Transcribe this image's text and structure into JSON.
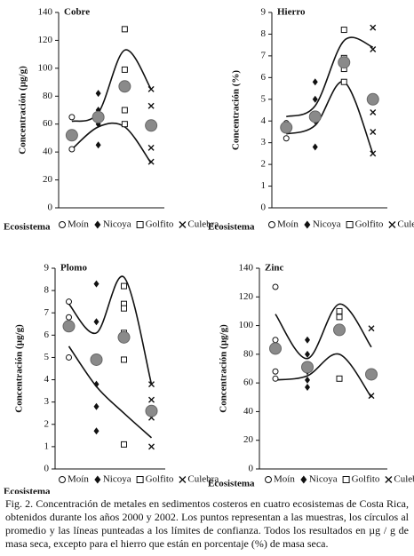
{
  "chart_data": [
    {
      "type": "strip",
      "title": "Cobre",
      "y_label": "Concentración (µg/g)",
      "x_label": "Ecosistema",
      "ylim": [
        0,
        140
      ],
      "yticks": [
        0,
        20,
        40,
        60,
        80,
        100,
        120,
        140
      ],
      "series": [
        {
          "name": "Moín",
          "marker": "circle",
          "values": [
            65,
            52,
            42,
            54
          ]
        },
        {
          "name": "Nicoya",
          "marker": "diamond",
          "values": [
            82,
            70,
            65,
            62,
            45,
            60
          ]
        },
        {
          "name": "Golfito",
          "marker": "square",
          "values": [
            128,
            99,
            88,
            70,
            60
          ]
        },
        {
          "name": "Culebra",
          "marker": "x",
          "values": [
            85,
            73,
            58,
            43,
            33
          ]
        }
      ],
      "means": [
        52,
        65,
        87,
        59
      ],
      "upper": [
        62,
        68,
        113,
        85
      ],
      "lower": [
        42,
        58,
        58,
        32
      ]
    },
    {
      "type": "strip",
      "title": "Hierro",
      "y_label": "Concentración (%)",
      "x_label": "Ecosistema",
      "ylim": [
        0,
        9
      ],
      "yticks": [
        0,
        1,
        2,
        3,
        4,
        5,
        6,
        7,
        8,
        9
      ],
      "series": [
        {
          "name": "Moín",
          "marker": "circle",
          "values": [
            3.8,
            3.6,
            3.2,
            3.9
          ]
        },
        {
          "name": "Nicoya",
          "marker": "diamond",
          "values": [
            5.8,
            5.0,
            4.3,
            4.0,
            2.8
          ]
        },
        {
          "name": "Golfito",
          "marker": "square",
          "values": [
            8.2,
            6.9,
            6.6,
            6.4,
            5.8
          ]
        },
        {
          "name": "Culebra",
          "marker": "x",
          "values": [
            8.3,
            7.3,
            4.4,
            3.5,
            2.5
          ]
        }
      ],
      "means": [
        3.7,
        4.2,
        6.7,
        5.0
      ],
      "upper": [
        4.2,
        4.7,
        7.7,
        7.4
      ],
      "lower": [
        3.4,
        3.8,
        5.8,
        2.5
      ]
    },
    {
      "type": "strip",
      "title": "Plomo",
      "y_label": "Concentración (µg/g)",
      "x_label": "Ecosistema",
      "ylim": [
        0,
        9
      ],
      "yticks": [
        0,
        1,
        2,
        3,
        4,
        5,
        6,
        7,
        8,
        9
      ],
      "series": [
        {
          "name": "Moín",
          "marker": "circle",
          "values": [
            7.5,
            6.8,
            6.3,
            5.0
          ]
        },
        {
          "name": "Nicoya",
          "marker": "diamond",
          "values": [
            8.3,
            6.6,
            5.0,
            4.9,
            3.8,
            2.8,
            1.7
          ]
        },
        {
          "name": "Golfito",
          "marker": "square",
          "values": [
            8.2,
            7.4,
            7.2,
            6.1,
            4.9,
            1.1
          ]
        },
        {
          "name": "Culebra",
          "marker": "x",
          "values": [
            3.8,
            3.1,
            2.5,
            2.3,
            1.0
          ]
        }
      ],
      "means": [
        6.4,
        4.9,
        5.9,
        2.6
      ],
      "upper": [
        7.4,
        6.1,
        8.6,
        3.8
      ],
      "lower": [
        5.5,
        3.7,
        2.5,
        1.4
      ]
    },
    {
      "type": "strip",
      "title": "Zinc",
      "y_label": "Concentración (µg/g)",
      "x_label": "Ecosistema",
      "ylim": [
        0,
        140
      ],
      "yticks": [
        0,
        20,
        40,
        60,
        80,
        100,
        120,
        140
      ],
      "series": [
        {
          "name": "Moín",
          "marker": "circle",
          "values": [
            127,
            90,
            82,
            68,
            63
          ]
        },
        {
          "name": "Nicoya",
          "marker": "diamond",
          "values": [
            90,
            80,
            72,
            68,
            62,
            57
          ]
        },
        {
          "name": "Golfito",
          "marker": "square",
          "values": [
            110,
            106,
            98,
            96,
            63
          ]
        },
        {
          "name": "Culebra",
          "marker": "x",
          "values": [
            98,
            66,
            65,
            51
          ]
        }
      ],
      "means": [
        84,
        71,
        97,
        66
      ],
      "upper": [
        108,
        77,
        115,
        85
      ],
      "lower": [
        62,
        65,
        80,
        50
      ]
    }
  ],
  "caption": "Fig. 2. Concentración de metales en sedimentos costeros en cuatro ecosistemas de Costa Rica, obtenidos durante los años 2000 y 2002. Los puntos representan a las muestras, los círculos al promedio y las líneas punteadas a los límites de confianza. Todos los resultados en µg / g de masa seca, excepto para el hierro que están en porcentaje (%) de masa seca."
}
